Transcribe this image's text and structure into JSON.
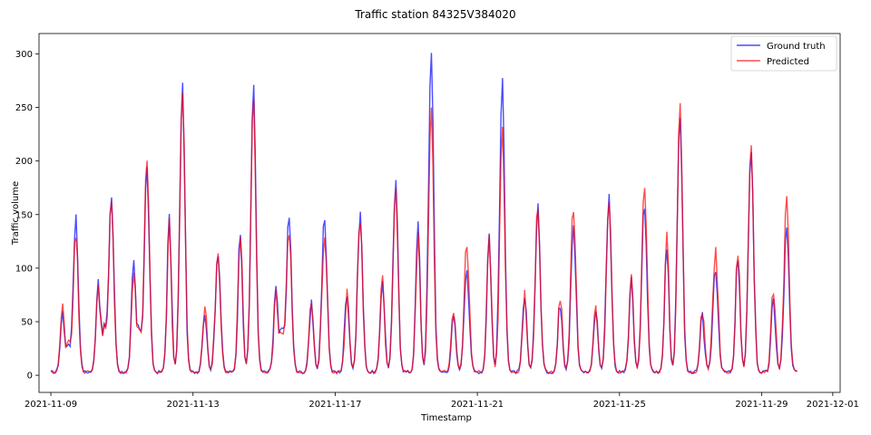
{
  "chart_data": {
    "type": "line",
    "title": "Traffic station 84325V384020",
    "xlabel": "Timestamp",
    "ylabel": "Traffic volume",
    "x_range": [
      "2021-11-08T16:00",
      "2021-12-01T05:00"
    ],
    "ylim": [
      -16,
      319
    ],
    "x_ticks": [
      "2021-11-09",
      "2021-11-13",
      "2021-11-17",
      "2021-11-21",
      "2021-11-25",
      "2021-11-29",
      "2021-12-01"
    ],
    "y_ticks": [
      0,
      50,
      100,
      150,
      200,
      250,
      300
    ],
    "grid": false,
    "legend_position": "top-right",
    "series": [
      {
        "name": "Ground truth",
        "color": "#0000ff",
        "x_days_reference": "2021-11-09",
        "peaks": [
          [
            0.15,
            145,
            0.1,
            100,
            0.05,
            80
          ],
          [
            1.05,
            165,
            0.1,
            160,
            0.2,
            130
          ],
          [
            2.05,
            190,
            0.1,
            185,
            0.9,
            125
          ],
          [
            3.05,
            268,
            0.1,
            260,
            0.0,
            0
          ],
          [
            4.05,
            115,
            0.1,
            105,
            0.0,
            0
          ],
          [
            5.05,
            265,
            0.1,
            245,
            0.0,
            0
          ],
          [
            6.05,
            145,
            0.1,
            140,
            0.2,
            120
          ],
          [
            7.05,
            145,
            0.1,
            120,
            0.0,
            0
          ],
          [
            8.05,
            148,
            0.1,
            140,
            0.0,
            0
          ],
          [
            9.05,
            175,
            0.1,
            160,
            0.0,
            0
          ],
          [
            10.05,
            303,
            0.1,
            250,
            0.0,
            0
          ],
          [
            11.05,
            100,
            0.1,
            90,
            0.0,
            0
          ],
          [
            12.05,
            270,
            0.1,
            235,
            0.0,
            0
          ],
          [
            13.05,
            153,
            0.1,
            125,
            0.0,
            0
          ],
          [
            14.05,
            140,
            0.1,
            120,
            0.0,
            0
          ],
          [
            15.05,
            165,
            0.1,
            105,
            0.0,
            0
          ],
          [
            16.05,
            158,
            0.1,
            150,
            0.0,
            0
          ],
          [
            17.05,
            243,
            0.1,
            220,
            0.0,
            0
          ],
          [
            18.05,
            100,
            0.1,
            90,
            0.0,
            0
          ],
          [
            19.05,
            212,
            0.1,
            200,
            0.0,
            0
          ],
          [
            20.05,
            133,
            0.1,
            120,
            0.0,
            0
          ]
        ]
      },
      {
        "name": "Predicted",
        "color": "#ff0000",
        "x_days_reference": "2021-11-09",
        "peaks": [
          [
            0.15,
            130,
            0.1,
            110,
            0.05,
            95
          ],
          [
            1.05,
            160,
            0.1,
            150,
            0.2,
            125
          ],
          [
            2.05,
            195,
            0.1,
            180,
            0.9,
            120
          ],
          [
            3.05,
            265,
            0.1,
            250,
            0.0,
            0
          ],
          [
            4.05,
            112,
            0.1,
            110,
            0.0,
            0
          ],
          [
            5.05,
            255,
            0.1,
            240,
            0.0,
            0
          ],
          [
            6.05,
            135,
            0.1,
            130,
            0.2,
            115
          ],
          [
            7.05,
            132,
            0.1,
            120,
            0.0,
            0
          ],
          [
            8.05,
            145,
            0.1,
            135,
            0.0,
            0
          ],
          [
            9.05,
            173,
            0.1,
            165,
            0.0,
            0
          ],
          [
            10.05,
            250,
            0.1,
            230,
            0.0,
            0
          ],
          [
            11.05,
            120,
            0.1,
            110,
            0.0,
            0
          ],
          [
            12.05,
            230,
            0.1,
            228,
            0.0,
            0
          ],
          [
            13.05,
            155,
            0.1,
            128,
            0.0,
            0
          ],
          [
            14.05,
            155,
            0.1,
            130,
            0.0,
            0
          ],
          [
            15.05,
            163,
            0.1,
            110,
            0.0,
            0
          ],
          [
            16.05,
            180,
            0.1,
            160,
            0.0,
            0
          ],
          [
            17.05,
            250,
            0.1,
            230,
            0.0,
            0
          ],
          [
            18.05,
            115,
            0.1,
            105,
            0.0,
            0
          ],
          [
            19.05,
            216,
            0.1,
            205,
            0.0,
            0
          ],
          [
            20.05,
            160,
            0.1,
            140,
            0.0,
            0
          ]
        ]
      }
    ]
  }
}
